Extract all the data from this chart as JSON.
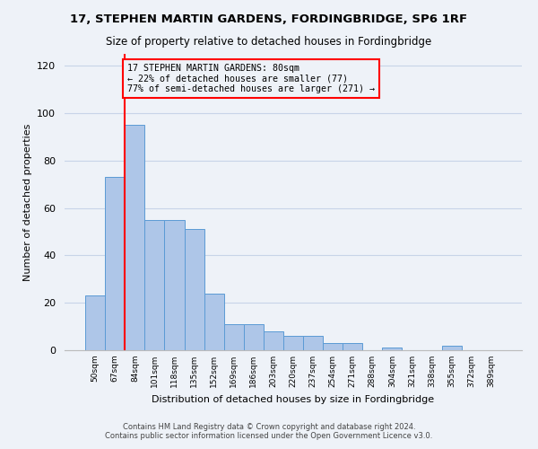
{
  "title1": "17, STEPHEN MARTIN GARDENS, FORDINGBRIDGE, SP6 1RF",
  "title2": "Size of property relative to detached houses in Fordingbridge",
  "xlabel": "Distribution of detached houses by size in Fordingbridge",
  "ylabel": "Number of detached properties",
  "categories": [
    "50sqm",
    "67sqm",
    "84sqm",
    "101sqm",
    "118sqm",
    "135sqm",
    "152sqm",
    "169sqm",
    "186sqm",
    "203sqm",
    "220sqm",
    "237sqm",
    "254sqm",
    "271sqm",
    "288sqm",
    "304sqm",
    "321sqm",
    "338sqm",
    "355sqm",
    "372sqm",
    "389sqm"
  ],
  "values": [
    23,
    73,
    95,
    55,
    55,
    51,
    24,
    11,
    11,
    8,
    6,
    6,
    3,
    3,
    0,
    1,
    0,
    0,
    2,
    0,
    0
  ],
  "bar_color": "#aec6e8",
  "bar_edge_color": "#5b9bd5",
  "grid_color": "#c8d4e8",
  "vline_color": "red",
  "annotation_text": "17 STEPHEN MARTIN GARDENS: 80sqm\n← 22% of detached houses are smaller (77)\n77% of semi-detached houses are larger (271) →",
  "ylim": [
    0,
    125
  ],
  "yticks": [
    0,
    20,
    40,
    60,
    80,
    100,
    120
  ],
  "footer1": "Contains HM Land Registry data © Crown copyright and database right 2024.",
  "footer2": "Contains public sector information licensed under the Open Government Licence v3.0.",
  "background_color": "#eef2f8"
}
